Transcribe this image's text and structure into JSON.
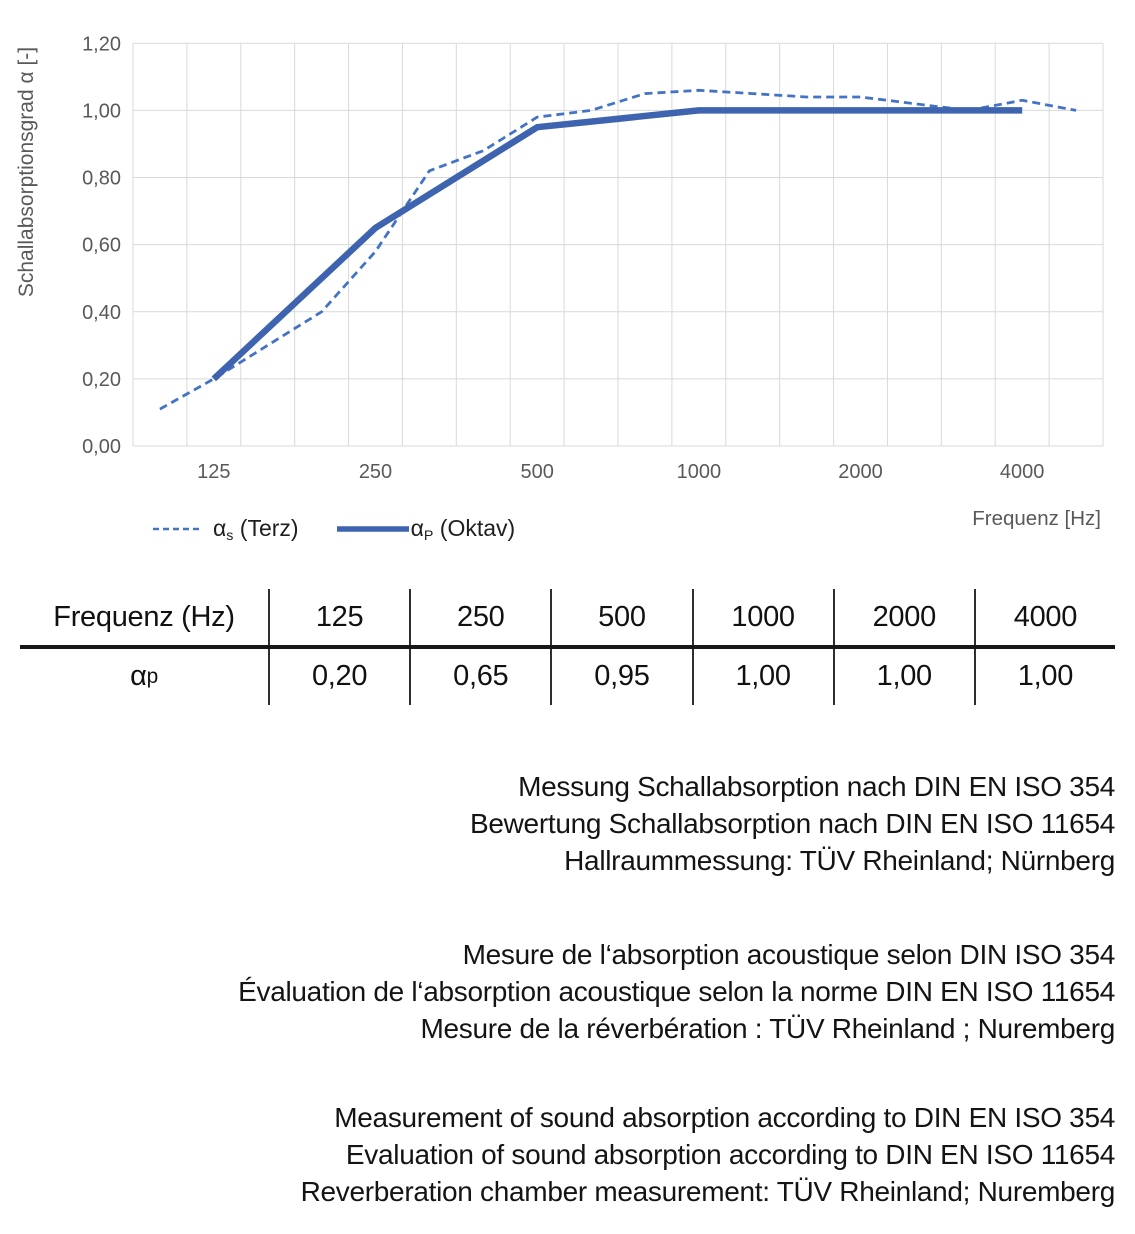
{
  "chart_data": {
    "type": "line",
    "title": "",
    "ylabel": "Schallabsorptionsgrad α [-]",
    "xlabel": "Frequenz [Hz]",
    "x_categories": [
      100,
      125,
      160,
      200,
      250,
      315,
      400,
      500,
      630,
      800,
      1000,
      1250,
      1600,
      2000,
      2500,
      3150,
      4000,
      5000
    ],
    "x_tick_labels": [
      "125",
      "250",
      "500",
      "1000",
      "2000",
      "4000"
    ],
    "y_tick_labels": [
      "0,00",
      "0,20",
      "0,40",
      "0,60",
      "0,80",
      "1,00",
      "1,20"
    ],
    "ylim": [
      0,
      1.2
    ],
    "grid": true,
    "grid_color": "#D9D9D9",
    "legend_position": "bottom-left",
    "series": [
      {
        "name": "αs (Terz)",
        "style": "dashed",
        "color": "#4472C4",
        "x": [
          100,
          125,
          160,
          200,
          250,
          315,
          400,
          500,
          630,
          800,
          1000,
          1250,
          1600,
          2000,
          2500,
          3150,
          4000,
          5000
        ],
        "values": [
          0.11,
          0.2,
          0.3,
          0.4,
          0.58,
          0.82,
          0.88,
          0.98,
          1.0,
          1.05,
          1.06,
          1.05,
          1.04,
          1.04,
          1.02,
          1.0,
          1.03,
          1.0
        ]
      },
      {
        "name": "αP (Oktav)",
        "style": "solid",
        "color": "#3E63AF",
        "x": [
          125,
          250,
          500,
          1000,
          2000,
          4000
        ],
        "values": [
          0.2,
          0.65,
          0.95,
          1.0,
          1.0,
          1.0
        ]
      }
    ]
  },
  "legend": {
    "terz": {
      "alpha": "α",
      "sub": "s",
      "rest": " (Terz)"
    },
    "oktav": {
      "alpha": "α",
      "sub": "P",
      "rest": " (Oktav)"
    }
  },
  "table": {
    "header": [
      "Frequenz (Hz)",
      "125",
      "250",
      "500",
      "1000",
      "2000",
      "4000"
    ],
    "row_label": {
      "alpha": "α",
      "sub": "p"
    },
    "values": [
      "0,20",
      "0,65",
      "0,95",
      "1,00",
      "1,00",
      "1,00"
    ]
  },
  "notes": {
    "de": [
      "Messung Schallabsorption nach DIN EN ISO 354",
      "Bewertung Schallabsorption nach DIN EN ISO 11654",
      "Hallraummessung: TÜV Rheinland; Nürnberg"
    ],
    "fr": [
      "Mesure de l‘absorption acoustique selon DIN ISO 354",
      "Évaluation de l‘absorption acoustique selon la norme DIN EN ISO 11654",
      "Mesure de la réverbération : TÜV Rheinland ; Nuremberg"
    ],
    "en": [
      "Measurement of sound absorption according to DIN EN ISO 354",
      "Evaluation of sound absorption according to DIN EN ISO 11654",
      "Reverberation chamber measurement: TÜV Rheinland; Nuremberg"
    ]
  }
}
